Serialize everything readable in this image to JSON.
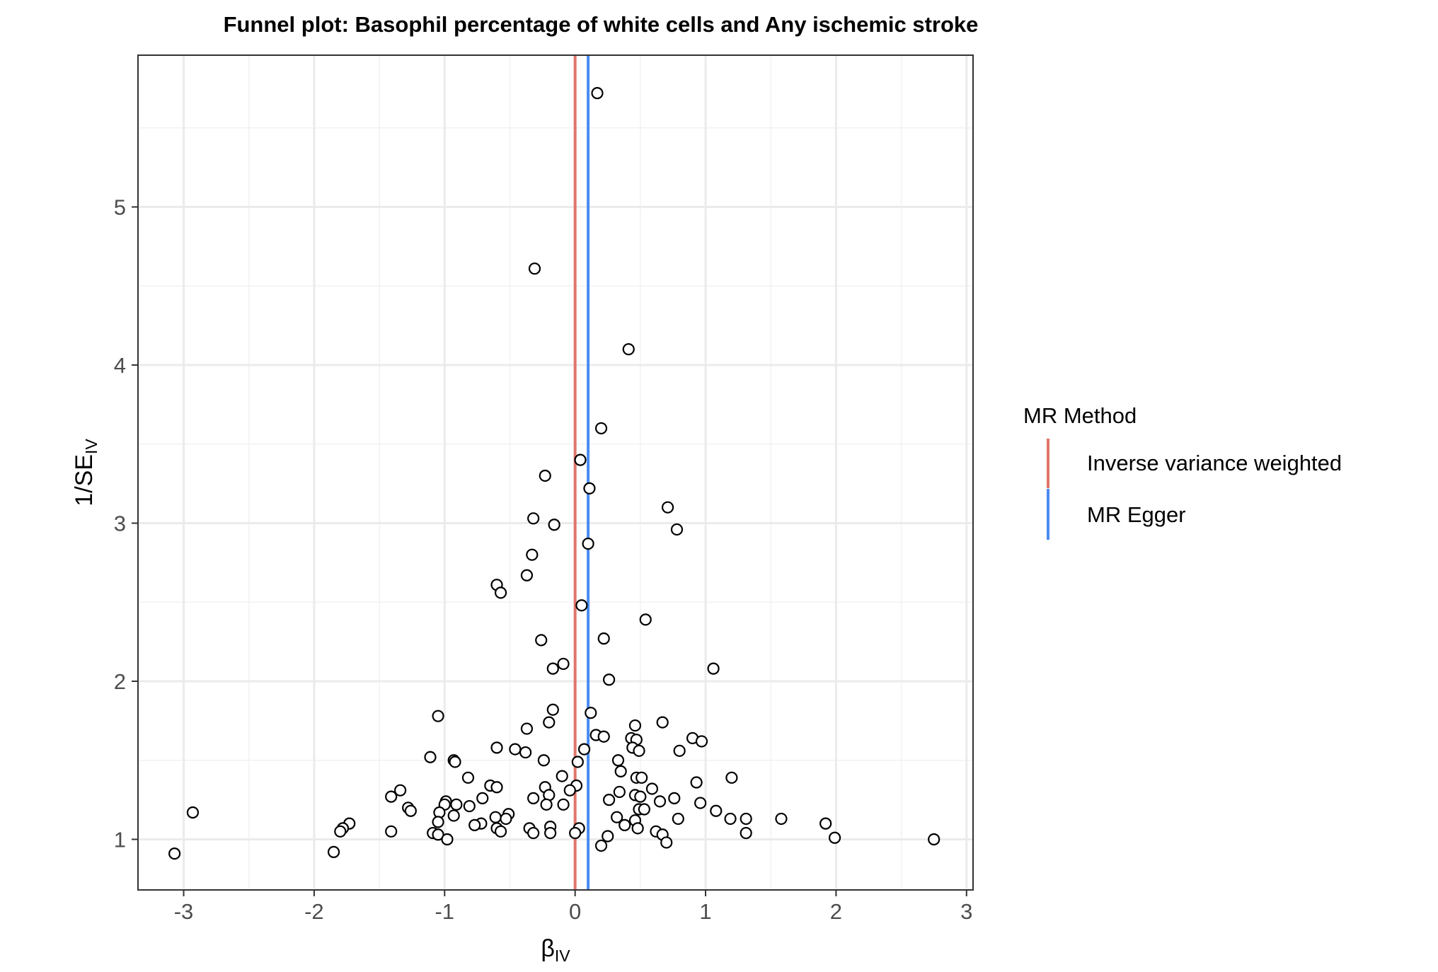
{
  "chart_data": {
    "type": "scatter",
    "title": "Funnel plot: Basophil percentage of white cells and Any ischemic stroke",
    "xlabel": {
      "main": "β",
      "sub": "IV"
    },
    "ylabel": {
      "main": "1/SE",
      "sub": "IV"
    },
    "xlim": [
      -3.35,
      3.05
    ],
    "ylim": [
      0.68,
      5.96
    ],
    "x_ticks": [
      -3,
      -2,
      -1,
      0,
      1,
      2,
      3
    ],
    "y_ticks": [
      1,
      2,
      3,
      4,
      5
    ],
    "x_tick_labels": [
      "-3",
      "-2",
      "-1",
      "0",
      "1",
      "2",
      "3"
    ],
    "y_tick_labels": [
      "1",
      "2",
      "3",
      "4",
      "5"
    ],
    "grid": true,
    "legend": {
      "title": "MR Method",
      "position": "right",
      "entries": [
        {
          "label": "Inverse variance weighted",
          "color": "#E0756A"
        },
        {
          "label": "MR Egger",
          "color": "#4A8CF0"
        }
      ]
    },
    "vertical_lines": [
      {
        "name": "Inverse variance weighted",
        "x": 0.0,
        "color": "#E0756A"
      },
      {
        "name": "MR Egger",
        "x": 0.1,
        "color": "#4A8CF0"
      }
    ],
    "points": [
      [
        0.17,
        5.72
      ],
      [
        -0.31,
        4.61
      ],
      [
        0.41,
        4.1
      ],
      [
        0.2,
        3.6
      ],
      [
        0.04,
        3.4
      ],
      [
        -0.23,
        3.3
      ],
      [
        0.11,
        3.22
      ],
      [
        0.71,
        3.1
      ],
      [
        -0.32,
        3.03
      ],
      [
        -0.16,
        2.99
      ],
      [
        0.78,
        2.96
      ],
      [
        0.1,
        2.87
      ],
      [
        -0.33,
        2.8
      ],
      [
        -0.37,
        2.67
      ],
      [
        -0.6,
        2.61
      ],
      [
        -0.57,
        2.56
      ],
      [
        0.05,
        2.48
      ],
      [
        0.54,
        2.39
      ],
      [
        -0.26,
        2.26
      ],
      [
        0.22,
        2.27
      ],
      [
        -0.09,
        2.11
      ],
      [
        -0.17,
        2.08
      ],
      [
        1.06,
        2.08
      ],
      [
        0.26,
        2.01
      ],
      [
        -0.17,
        1.82
      ],
      [
        -1.05,
        1.78
      ],
      [
        0.12,
        1.8
      ],
      [
        -0.2,
        1.74
      ],
      [
        0.46,
        1.72
      ],
      [
        0.67,
        1.74
      ],
      [
        -0.37,
        1.7
      ],
      [
        0.43,
        1.64
      ],
      [
        0.47,
        1.63
      ],
      [
        0.16,
        1.66
      ],
      [
        0.22,
        1.65
      ],
      [
        0.9,
        1.64
      ],
      [
        0.97,
        1.62
      ],
      [
        -0.6,
        1.58
      ],
      [
        -0.46,
        1.57
      ],
      [
        0.44,
        1.58
      ],
      [
        0.49,
        1.56
      ],
      [
        0.07,
        1.57
      ],
      [
        -0.38,
        1.55
      ],
      [
        0.8,
        1.56
      ],
      [
        -1.11,
        1.52
      ],
      [
        -0.93,
        1.5
      ],
      [
        -0.92,
        1.49
      ],
      [
        -0.24,
        1.5
      ],
      [
        0.02,
        1.49
      ],
      [
        0.33,
        1.5
      ],
      [
        0.35,
        1.43
      ],
      [
        0.47,
        1.39
      ],
      [
        0.51,
        1.39
      ],
      [
        -0.82,
        1.39
      ],
      [
        -0.1,
        1.4
      ],
      [
        1.2,
        1.39
      ],
      [
        0.93,
        1.36
      ],
      [
        -0.65,
        1.34
      ],
      [
        -0.6,
        1.33
      ],
      [
        -0.23,
        1.33
      ],
      [
        0.01,
        1.34
      ],
      [
        0.59,
        1.32
      ],
      [
        -1.34,
        1.31
      ],
      [
        -0.04,
        1.31
      ],
      [
        0.34,
        1.3
      ],
      [
        -0.2,
        1.28
      ],
      [
        0.46,
        1.28
      ],
      [
        -1.41,
        1.27
      ],
      [
        -0.71,
        1.26
      ],
      [
        -0.32,
        1.26
      ],
      [
        0.5,
        1.27
      ],
      [
        0.76,
        1.26
      ],
      [
        -0.99,
        1.24
      ],
      [
        -1.0,
        1.22
      ],
      [
        0.26,
        1.25
      ],
      [
        0.65,
        1.24
      ],
      [
        0.96,
        1.23
      ],
      [
        -0.91,
        1.22
      ],
      [
        -0.81,
        1.21
      ],
      [
        -0.22,
        1.22
      ],
      [
        -0.09,
        1.22
      ],
      [
        -1.28,
        1.2
      ],
      [
        -1.26,
        1.18
      ],
      [
        -1.04,
        1.17
      ],
      [
        0.49,
        1.19
      ],
      [
        0.53,
        1.19
      ],
      [
        1.08,
        1.18
      ],
      [
        -2.93,
        1.17
      ],
      [
        -0.93,
        1.15
      ],
      [
        -0.51,
        1.16
      ],
      [
        -0.61,
        1.14
      ],
      [
        0.32,
        1.14
      ],
      [
        0.46,
        1.12
      ],
      [
        -0.53,
        1.13
      ],
      [
        0.79,
        1.13
      ],
      [
        1.19,
        1.13
      ],
      [
        1.31,
        1.13
      ],
      [
        1.58,
        1.13
      ],
      [
        -1.05,
        1.11
      ],
      [
        -0.72,
        1.1
      ],
      [
        -1.73,
        1.1
      ],
      [
        -0.77,
        1.09
      ],
      [
        0.38,
        1.09
      ],
      [
        1.92,
        1.1
      ],
      [
        -1.78,
        1.07
      ],
      [
        -0.6,
        1.07
      ],
      [
        -0.35,
        1.07
      ],
      [
        -0.19,
        1.08
      ],
      [
        0.03,
        1.07
      ],
      [
        0.48,
        1.07
      ],
      [
        -1.8,
        1.05
      ],
      [
        -1.41,
        1.05
      ],
      [
        -1.09,
        1.04
      ],
      [
        -0.57,
        1.05
      ],
      [
        -0.32,
        1.04
      ],
      [
        -0.19,
        1.04
      ],
      [
        0.0,
        1.04
      ],
      [
        0.62,
        1.05
      ],
      [
        1.31,
        1.04
      ],
      [
        -1.05,
        1.03
      ],
      [
        0.25,
        1.02
      ],
      [
        0.67,
        1.03
      ],
      [
        -0.98,
        1.0
      ],
      [
        1.99,
        1.01
      ],
      [
        2.75,
        1.0
      ],
      [
        0.7,
        0.98
      ],
      [
        0.2,
        0.96
      ],
      [
        -3.07,
        0.91
      ],
      [
        -1.85,
        0.92
      ]
    ]
  }
}
